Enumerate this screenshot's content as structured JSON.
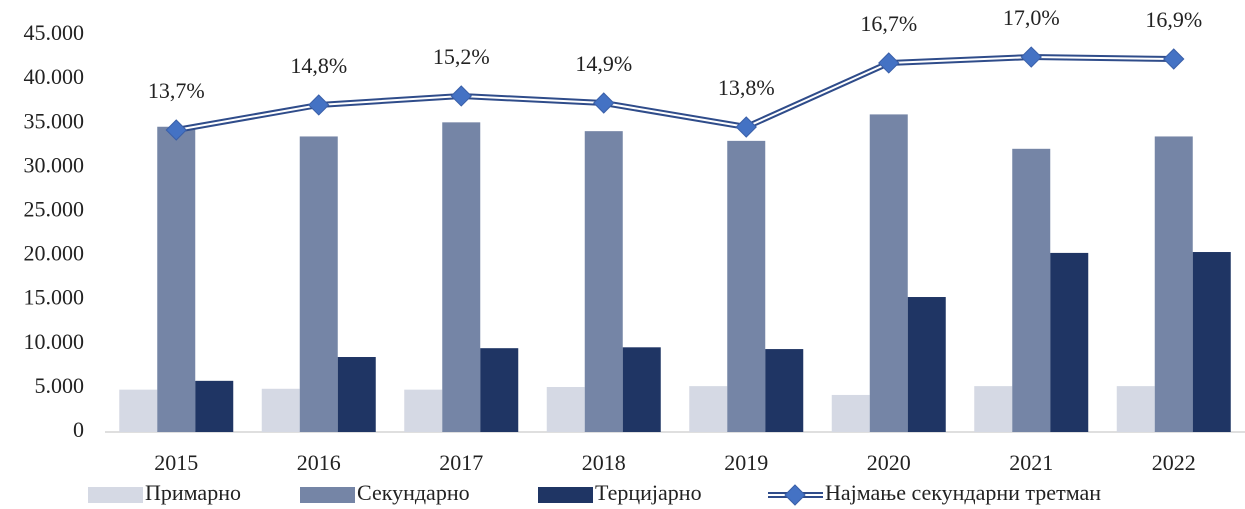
{
  "chart_data": {
    "type": "bar_line",
    "categories": [
      "2015",
      "2016",
      "2017",
      "2018",
      "2019",
      "2020",
      "2021",
      "2022"
    ],
    "series": [
      {
        "name": "Примарно",
        "color": "#d5d9e4",
        "type": "bar",
        "values": [
          4800,
          4900,
          4800,
          5100,
          5200,
          4200,
          5200,
          5200
        ]
      },
      {
        "name": "Секундарно",
        "color": "#7585a6",
        "type": "bar",
        "values": [
          34600,
          33500,
          35100,
          34100,
          33000,
          36000,
          32100,
          33500
        ]
      },
      {
        "name": "Терцијарно",
        "color": "#1f3564",
        "type": "bar",
        "values": [
          5800,
          8500,
          9500,
          9600,
          9400,
          15300,
          20300,
          20400
        ]
      },
      {
        "name": "Најмање секундарни третман",
        "color": "#4472c4",
        "type": "line",
        "values": [
          34230,
          37070,
          38090,
          37290,
          34570,
          41830,
          42500,
          42280
        ],
        "point_labels": [
          "13,7%",
          "14,8%",
          "15,2%",
          "14,9%",
          "13,8%",
          "16,7%",
          "17,0%",
          "16,9%"
        ]
      }
    ],
    "ylim": [
      0,
      45000
    ],
    "yticks": [
      0,
      {
        "value": 5000,
        "label": "5.000"
      },
      {
        "value": 10000,
        "label": "10.000"
      },
      {
        "value": 15000,
        "label": "15.000"
      },
      {
        "value": 20000,
        "label": "20.000"
      },
      {
        "value": 25000,
        "label": "25.000"
      },
      {
        "value": 30000,
        "label": "30.000"
      },
      {
        "value": 35000,
        "label": "35.000"
      },
      {
        "value": 40000,
        "label": "40.000"
      },
      {
        "value": 45000,
        "label": "45.000"
      }
    ],
    "grid": false,
    "legend": "bottom"
  }
}
